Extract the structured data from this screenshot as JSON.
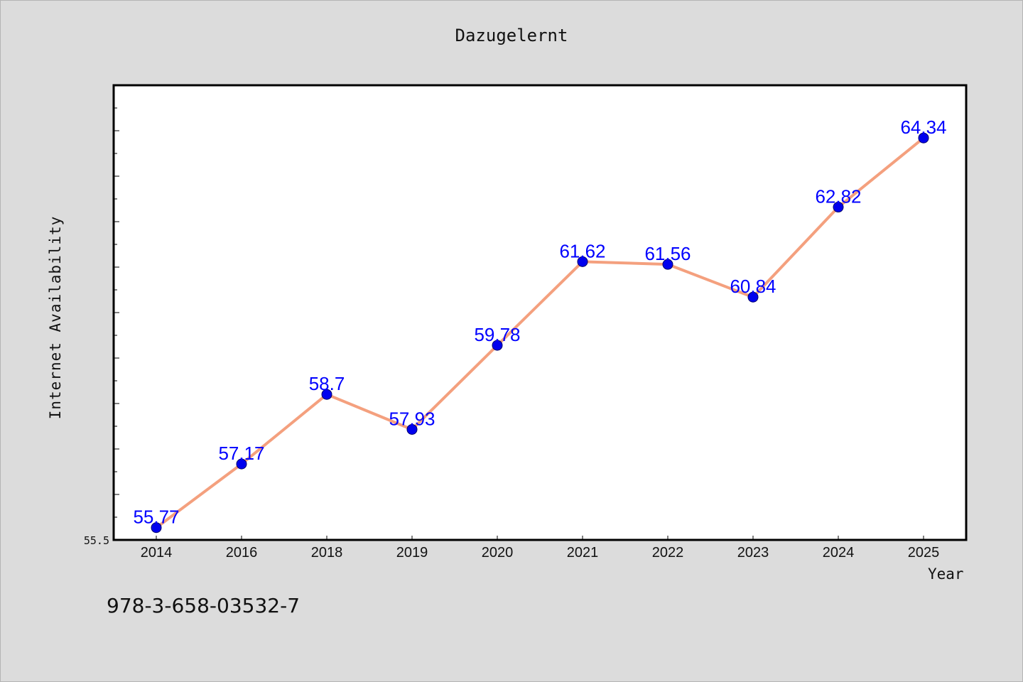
{
  "chart_data": {
    "type": "line",
    "title": "Dazugelernt",
    "xlabel": "Year",
    "ylabel": "Internet Availability",
    "categories": [
      "2014",
      "2016",
      "2018",
      "2019",
      "2020",
      "2021",
      "2022",
      "2023",
      "2024",
      "2025"
    ],
    "values": [
      55.77,
      57.17,
      58.7,
      57.93,
      59.78,
      61.62,
      61.56,
      60.84,
      62.82,
      64.34
    ],
    "data_labels": [
      "55.77",
      "57.17",
      "58.7",
      "57.93",
      "59.78",
      "61.62",
      "61.56",
      "60.84",
      "62.82",
      "64.34"
    ],
    "ylim": [
      55.5,
      65.5
    ],
    "y_tick_labels": [
      "55.5"
    ],
    "grid": false,
    "line_color": "#f4a07e",
    "marker_color": "#0000ee",
    "label_color": "#0000ff"
  },
  "footer": {
    "identifier": "978-3-658-03532-7"
  }
}
